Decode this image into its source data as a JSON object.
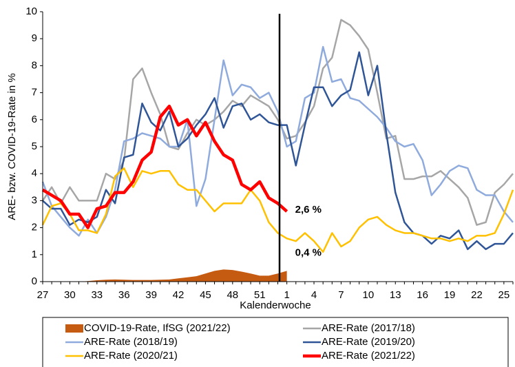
{
  "chart_data": {
    "type": "line",
    "xlabel": "Kalenderwoche",
    "ylabel": "ARE- bzw. COVID-19-Rate in %",
    "categories": [
      "27",
      null,
      null,
      "30",
      null,
      null,
      "33",
      null,
      null,
      "36",
      null,
      null,
      "39",
      null,
      null,
      "42",
      null,
      null,
      "45",
      null,
      null,
      "48",
      null,
      null,
      "51",
      null,
      null,
      "1",
      null,
      null,
      "4",
      null,
      null,
      "7",
      null,
      null,
      "10",
      null,
      null,
      "13",
      null,
      null,
      "16",
      null,
      null,
      "19",
      null,
      null,
      "22",
      null,
      null,
      "25",
      null
    ],
    "ylim": [
      0,
      10
    ],
    "yticks": [
      0,
      1,
      2,
      3,
      4,
      5,
      6,
      7,
      8,
      9,
      10
    ],
    "series": [
      {
        "name": "COVID-19-Rate, IfSG (2021/22)",
        "color": "#c55a11",
        "style": "area",
        "values": [
          0,
          0,
          0,
          0,
          0,
          0.02,
          0.05,
          0.07,
          0.08,
          0.07,
          0.06,
          0.06,
          0.06,
          0.07,
          0.08,
          0.12,
          0.16,
          0.2,
          0.3,
          0.4,
          0.45,
          0.43,
          0.37,
          0.3,
          0.22,
          0.22,
          0.3,
          0.4,
          null,
          null,
          null,
          null,
          null,
          null,
          null,
          null,
          null,
          null,
          null,
          null,
          null,
          null,
          null,
          null,
          null,
          null,
          null,
          null,
          null,
          null,
          null,
          null,
          null
        ],
        "value_labels": [
          null,
          null,
          null,
          null,
          null,
          null,
          null,
          null,
          null,
          null,
          null,
          null,
          null,
          null,
          null,
          null,
          null,
          null,
          null,
          null,
          null,
          null,
          null,
          null,
          null,
          null,
          null,
          "0,4 %",
          null,
          null,
          null,
          null,
          null,
          null,
          null,
          null,
          null,
          null,
          null,
          null,
          null,
          null,
          null,
          null,
          null,
          null,
          null,
          null,
          null,
          null,
          null,
          null,
          null
        ]
      },
      {
        "name": "ARE-Rate (2017/18)",
        "color": "#a6a6a6",
        "width": 2.5,
        "values": [
          3.0,
          3.5,
          2.9,
          3.5,
          3.0,
          3.0,
          3.0,
          4.0,
          3.8,
          4.5,
          7.5,
          7.9,
          7.0,
          6.2,
          5.0,
          4.9,
          5.5,
          6.0,
          5.8,
          6.0,
          6.3,
          6.7,
          6.5,
          6.9,
          6.7,
          6.5,
          6.0,
          5.3,
          5.4,
          5.9,
          6.5,
          7.9,
          8.3,
          9.7,
          9.5,
          9.1,
          8.6,
          7.0,
          5.3,
          5.4,
          3.8,
          3.8,
          3.9,
          3.9,
          4.1,
          3.8,
          3.5,
          3.1,
          2.1,
          2.2,
          3.3,
          3.6,
          4.0
        ]
      },
      {
        "name": "ARE-Rate (2018/19)",
        "color": "#8faadc",
        "width": 2.5,
        "values": [
          3.7,
          2.8,
          2.4,
          2.0,
          1.7,
          2.3,
          1.8,
          2.4,
          3.4,
          5.2,
          5.3,
          5.5,
          5.4,
          5.3,
          5.0,
          5.0,
          6.0,
          2.8,
          3.8,
          6.0,
          8.2,
          6.9,
          7.3,
          7.2,
          6.8,
          7.0,
          6.3,
          5.0,
          5.2,
          6.8,
          7.0,
          8.7,
          7.4,
          7.5,
          6.8,
          6.7,
          6.4,
          6.1,
          5.7,
          5.2,
          5.0,
          5.1,
          4.5,
          3.2,
          3.6,
          4.1,
          4.3,
          4.2,
          3.4,
          3.2,
          3.2,
          2.6,
          2.2
        ]
      },
      {
        "name": "ARE-Rate (2019/20)",
        "color": "#2f5597",
        "width": 2.5,
        "values": [
          3.0,
          2.7,
          2.7,
          2.1,
          2.3,
          2.2,
          2.4,
          3.4,
          2.9,
          4.6,
          4.7,
          6.6,
          5.9,
          5.6,
          6.3,
          5.0,
          5.3,
          5.8,
          6.2,
          6.8,
          5.7,
          6.5,
          6.6,
          6.0,
          6.2,
          5.9,
          5.8,
          5.8,
          4.3,
          5.8,
          7.2,
          7.2,
          6.5,
          6.9,
          7.1,
          8.5,
          6.9,
          8.0,
          5.5,
          3.3,
          2.2,
          1.8,
          1.7,
          1.4,
          1.7,
          1.6,
          1.9,
          1.2,
          1.5,
          1.2,
          1.4,
          1.4,
          1.8
        ]
      },
      {
        "name": "ARE-Rate (2020/21)",
        "color": "#ffc000",
        "width": 2.5,
        "values": [
          2.1,
          2.8,
          2.9,
          2.5,
          1.9,
          1.9,
          1.8,
          2.5,
          3.9,
          4.2,
          3.5,
          4.1,
          4.0,
          4.1,
          4.1,
          3.6,
          3.4,
          3.4,
          3.0,
          2.6,
          2.9,
          2.9,
          2.9,
          3.4,
          3.0,
          2.2,
          1.8,
          1.6,
          1.5,
          1.8,
          1.5,
          1.1,
          1.8,
          1.3,
          1.5,
          2.0,
          2.3,
          2.4,
          2.1,
          1.9,
          1.8,
          1.8,
          1.7,
          1.6,
          1.6,
          1.5,
          1.6,
          1.5,
          1.7,
          1.7,
          1.8,
          2.5,
          3.4
        ]
      },
      {
        "name": "ARE-Rate (2021/22)",
        "color": "#ff0000",
        "width": 4.5,
        "values": [
          3.4,
          3.2,
          3.0,
          2.5,
          2.5,
          2.0,
          2.7,
          2.8,
          3.3,
          3.3,
          3.7,
          4.5,
          4.8,
          6.1,
          6.5,
          5.8,
          6.0,
          5.4,
          5.9,
          5.2,
          4.7,
          4.5,
          3.6,
          3.4,
          3.7,
          3.1,
          2.9,
          2.6,
          null,
          null,
          null,
          null,
          null,
          null,
          null,
          null,
          null,
          null,
          null,
          null,
          null,
          null,
          null,
          null,
          null,
          null,
          null,
          null,
          null,
          null,
          null,
          null,
          null
        ],
        "value_labels": [
          null,
          null,
          null,
          null,
          null,
          null,
          null,
          null,
          null,
          null,
          null,
          null,
          null,
          null,
          null,
          null,
          null,
          null,
          null,
          null,
          null,
          null,
          null,
          null,
          null,
          null,
          null,
          "2,6 %",
          null,
          null,
          null,
          null,
          null,
          null,
          null,
          null,
          null,
          null,
          null,
          null,
          null,
          null,
          null,
          null,
          null,
          null,
          null,
          null,
          null,
          null,
          null,
          null,
          null
        ]
      }
    ]
  }
}
